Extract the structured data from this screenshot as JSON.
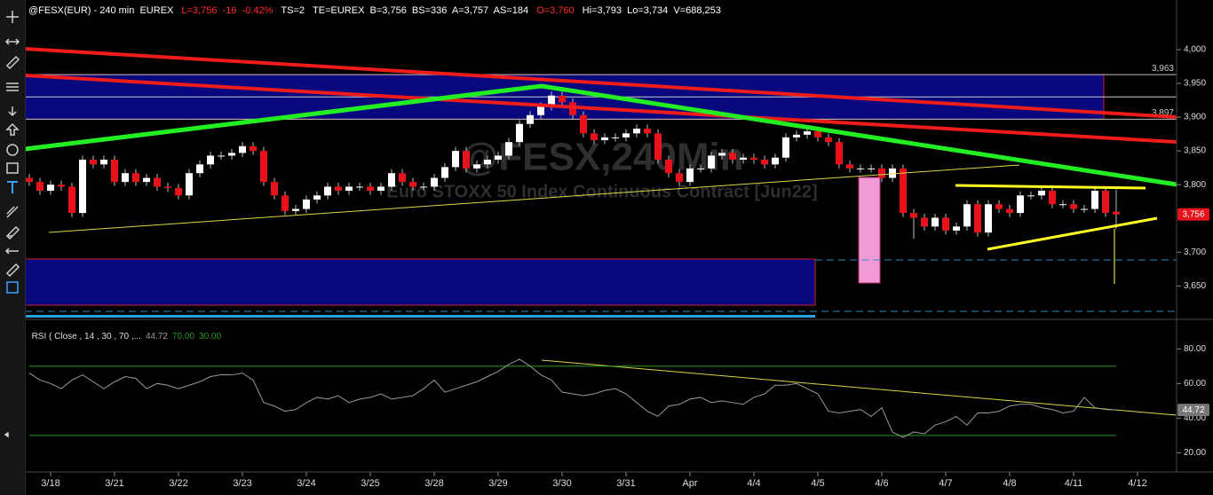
{
  "chart_data": [
    {
      "type": "candlestick",
      "header": [
        {
          "text": "@FESX(EUR) - 240 min  EUREX",
          "color": "#ffffff"
        },
        {
          "text": "L=3,756  -16  -0.42%",
          "color": "#ff2a2a"
        },
        {
          "text": "TS=2",
          "color": "#ffffff"
        },
        {
          "text": "TE=EUREX  B=3,756  BS=336  A=3,757  AS=184",
          "color": "#ffffff"
        },
        {
          "text": "O=3,760",
          "color": "#ff2a2a"
        },
        {
          "text": "Hi=3,793  Lo=3,734  V=688,253",
          "color": "#ffffff"
        }
      ],
      "watermark": [
        "@FESX,240Min",
        "Euro STOXX 50 Index Continuous Contract [Jun22]"
      ],
      "categories": [
        null,
        null,
        "3/18",
        null,
        null,
        null,
        null,
        null,
        "3/21",
        null,
        null,
        null,
        null,
        null,
        "3/22",
        null,
        null,
        null,
        null,
        null,
        "3/23",
        null,
        null,
        null,
        null,
        null,
        "3/24",
        null,
        null,
        null,
        null,
        null,
        "3/25",
        null,
        null,
        null,
        null,
        null,
        "3/28",
        null,
        null,
        null,
        null,
        null,
        "3/29",
        null,
        null,
        null,
        null,
        null,
        "3/30",
        null,
        null,
        null,
        null,
        null,
        "3/31",
        null,
        null,
        null,
        null,
        null,
        "Apr",
        null,
        null,
        null,
        null,
        null,
        "4/4",
        null,
        null,
        null,
        null,
        null,
        "4/5",
        null,
        null,
        null,
        null,
        null,
        "4/6",
        null,
        null,
        null,
        null,
        null,
        "4/7",
        null,
        null,
        null,
        null,
        null,
        "4/8",
        null,
        null,
        null,
        null,
        null,
        "4/11",
        null,
        null,
        null,
        null,
        null,
        "4/12",
        null,
        null,
        null
      ],
      "open": [
        3810,
        3804,
        3791,
        3800,
        3797,
        3758,
        3837,
        3830,
        3837,
        3804,
        3817,
        3804,
        3810,
        3797,
        3795,
        3784,
        3817,
        3830,
        3843,
        3843,
        3847,
        3857,
        3850,
        3804,
        3784,
        3761,
        3764,
        3778,
        3784,
        3797,
        3791,
        3797,
        3797,
        3791,
        3797,
        3817,
        3804,
        3797,
        3797,
        3810,
        3826,
        3850,
        3824,
        3830,
        3837,
        3843,
        3863,
        3890,
        3903,
        3916,
        3932,
        3922,
        3903,
        3876,
        3866,
        3870,
        3870,
        3876,
        3883,
        3876,
        3837,
        3817,
        3804,
        3824,
        3824,
        3843,
        3847,
        3837,
        3840,
        3837,
        3830,
        3840,
        3870,
        3874,
        3879,
        3870,
        3863,
        3830,
        3824,
        3824,
        3824,
        3810,
        3824,
        3758,
        3751,
        3738,
        3751,
        3732,
        3738,
        3771,
        3729,
        3771,
        3764,
        3758,
        3784,
        3784,
        3791,
        3771,
        3771,
        3764,
        3764,
        3791,
        3760,
        null,
        null,
        null,
        null,
        null
      ],
      "high": [
        3816,
        3810,
        3806,
        3806,
        3803,
        3843,
        3843,
        3843,
        3843,
        3823,
        3823,
        3816,
        3816,
        3803,
        3801,
        3823,
        3836,
        3849,
        3849,
        3853,
        3863,
        3863,
        3856,
        3810,
        3790,
        3770,
        3784,
        3790,
        3803,
        3803,
        3803,
        3803,
        3803,
        3803,
        3823,
        3823,
        3810,
        3803,
        3816,
        3832,
        3856,
        3856,
        3836,
        3843,
        3849,
        3869,
        3896,
        3909,
        3922,
        3938,
        3938,
        3928,
        3909,
        3882,
        3876,
        3876,
        3882,
        3889,
        3889,
        3882,
        3843,
        3823,
        3830,
        3830,
        3849,
        3853,
        3853,
        3846,
        3846,
        3843,
        3846,
        3876,
        3880,
        3885,
        3885,
        3876,
        3869,
        3836,
        3830,
        3830,
        3830,
        3830,
        3830,
        3764,
        3757,
        3757,
        3757,
        3744,
        3777,
        3777,
        3777,
        3777,
        3770,
        3790,
        3790,
        3797,
        3797,
        3777,
        3777,
        3770,
        3797,
        3797,
        3793,
        null,
        null,
        null,
        null,
        null
      ],
      "low": [
        3798,
        3785,
        3785,
        3791,
        3752,
        3752,
        3824,
        3824,
        3798,
        3798,
        3798,
        3798,
        3791,
        3789,
        3778,
        3778,
        3811,
        3824,
        3837,
        3837,
        3841,
        3844,
        3798,
        3778,
        3755,
        3755,
        3758,
        3772,
        3778,
        3785,
        3785,
        3791,
        3785,
        3785,
        3791,
        3798,
        3791,
        3791,
        3791,
        3804,
        3820,
        3818,
        3818,
        3824,
        3831,
        3837,
        3857,
        3884,
        3897,
        3910,
        3916,
        3897,
        3870,
        3860,
        3860,
        3864,
        3864,
        3870,
        3870,
        3831,
        3811,
        3798,
        3798,
        3818,
        3818,
        3837,
        3831,
        3831,
        3831,
        3824,
        3824,
        3834,
        3864,
        3868,
        3864,
        3857,
        3824,
        3818,
        3818,
        3818,
        3804,
        3804,
        3752,
        3720,
        3732,
        3732,
        3726,
        3726,
        3732,
        3723,
        3723,
        3758,
        3752,
        3752,
        3778,
        3778,
        3765,
        3765,
        3758,
        3758,
        3758,
        3752,
        3734,
        null,
        null,
        null,
        null,
        null
      ],
      "close": [
        3804,
        3791,
        3800,
        3797,
        3758,
        3837,
        3830,
        3837,
        3804,
        3817,
        3804,
        3810,
        3797,
        3795,
        3784,
        3817,
        3830,
        3843,
        3843,
        3847,
        3857,
        3850,
        3804,
        3784,
        3761,
        3764,
        3778,
        3784,
        3797,
        3791,
        3797,
        3797,
        3791,
        3797,
        3817,
        3804,
        3797,
        3797,
        3810,
        3826,
        3850,
        3824,
        3830,
        3837,
        3843,
        3863,
        3890,
        3903,
        3916,
        3932,
        3922,
        3903,
        3876,
        3866,
        3870,
        3870,
        3876,
        3883,
        3876,
        3837,
        3817,
        3804,
        3824,
        3824,
        3843,
        3847,
        3837,
        3840,
        3837,
        3830,
        3840,
        3870,
        3874,
        3879,
        3870,
        3863,
        3830,
        3824,
        3824,
        3824,
        3810,
        3824,
        3758,
        3751,
        3738,
        3751,
        3732,
        3738,
        3771,
        3729,
        3771,
        3764,
        3758,
        3784,
        3784,
        3791,
        3771,
        3771,
        3764,
        3764,
        3791,
        3758,
        3756,
        null,
        null,
        null,
        null,
        null
      ],
      "up_color": "#ffffff",
      "down_color": "#e8121a",
      "wick_color": "#bbbbbb",
      "last_label": "3,756",
      "price_levels": [
        {
          "value": 3963,
          "label": "3,963"
        },
        {
          "value": 3897,
          "label": "3,897"
        }
      ],
      "zone_color": "#08087e",
      "ylim": [
        3607,
        4067
      ],
      "yticks": [
        {
          "value": 4000,
          "label": "4,000"
        },
        {
          "value": 3950,
          "label": "3,950"
        },
        {
          "value": 3900,
          "label": "3,900"
        },
        {
          "value": 3850,
          "label": "3,850"
        },
        {
          "value": 3800,
          "label": "3,800"
        },
        {
          "value": 3700,
          "label": "3,700"
        },
        {
          "value": 3650,
          "label": "3,650"
        }
      ]
    },
    {
      "type": "line",
      "title": "RSI ( Close , 14 , 30 , 70 ,...",
      "values": [
        66,
        62,
        60,
        57,
        62,
        65,
        61,
        57,
        61,
        64,
        63,
        57,
        60,
        59,
        57,
        59,
        61,
        64,
        65,
        65,
        66,
        62,
        49,
        47,
        44,
        45,
        49,
        52,
        51,
        53,
        49,
        51,
        52,
        54,
        51,
        52,
        53,
        57,
        62,
        55,
        57,
        59,
        61,
        64,
        67,
        71,
        74,
        70,
        65,
        62,
        55,
        54,
        53,
        54,
        56,
        57,
        54,
        49,
        44,
        41,
        47,
        48,
        51,
        52,
        49,
        50,
        49,
        48,
        52,
        54,
        59,
        59,
        60,
        57,
        54,
        44,
        43,
        44,
        45,
        41,
        46,
        32,
        29,
        32,
        31,
        36,
        38,
        41,
        36,
        43,
        43,
        44,
        47,
        48,
        48,
        46,
        45,
        43,
        44,
        52,
        46,
        45,
        44.72,
        null,
        null,
        null,
        null,
        null
      ],
      "color": "#9a9a9a",
      "current_label": "44.72",
      "levels": [
        {
          "value": 70,
          "label": "70.00"
        },
        {
          "value": 30,
          "label": "30.00"
        }
      ],
      "level_color": "#1f9a1f",
      "ylim": [
        10,
        96
      ],
      "yticks": [
        {
          "value": 80,
          "label": "80.00"
        },
        {
          "value": 60,
          "label": "60.00"
        },
        {
          "value": 40,
          "label": "40.00"
        },
        {
          "value": 20,
          "label": "20.00"
        }
      ]
    }
  ]
}
